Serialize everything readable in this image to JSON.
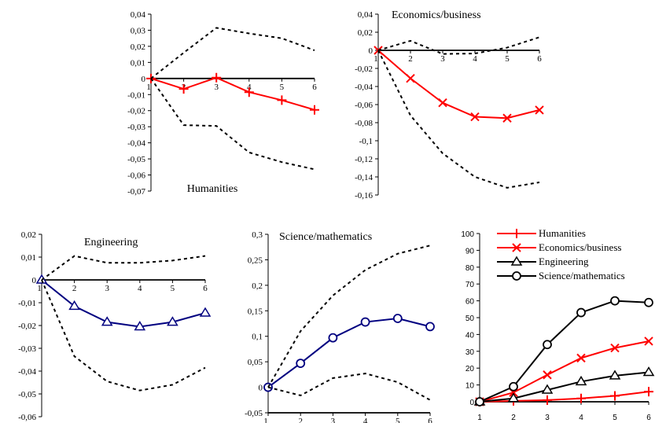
{
  "chart_data": [
    {
      "type": "line",
      "title": "Humanities",
      "x": [
        1,
        2,
        3,
        4,
        5,
        6
      ],
      "ylim": [
        -0.07,
        0.04
      ],
      "yticks": [
        0.04,
        0.03,
        0.02,
        0.01,
        0,
        -0.01,
        -0.02,
        -0.03,
        -0.04,
        -0.05,
        -0.06,
        -0.07
      ],
      "ytick_labels": [
        "0,04",
        "0,03",
        "0,02",
        "0,01",
        "0",
        "-0,01",
        "-0,02",
        "-0,03",
        "-0,04",
        "-0,05",
        "-0,06",
        "-0,07"
      ],
      "xtick_labels": [
        "1",
        "2",
        "3",
        "4",
        "5",
        "6"
      ],
      "series": [
        {
          "role": "estimate",
          "color": "#ff0000",
          "marker": "plus",
          "values": [
            0,
            -0.0065,
            0.0005,
            -0.0085,
            -0.0135,
            -0.0195
          ]
        },
        {
          "role": "upper",
          "color": "#000000",
          "style": "dashed",
          "values": [
            0,
            0.016,
            0.0315,
            0.028,
            0.025,
            0.0175
          ]
        },
        {
          "role": "lower",
          "color": "#000000",
          "style": "dashed",
          "values": [
            0,
            -0.029,
            -0.0295,
            -0.046,
            -0.052,
            -0.0565
          ]
        }
      ]
    },
    {
      "type": "line",
      "title": "Economics/business",
      "x": [
        1,
        2,
        3,
        4,
        5,
        6
      ],
      "ylim": [
        -0.16,
        0.04
      ],
      "yticks": [
        0.04,
        0.02,
        0,
        -0.02,
        -0.04,
        -0.06,
        -0.08,
        -0.1,
        -0.12,
        -0.14,
        -0.16
      ],
      "ytick_labels": [
        "0,04",
        "0,02",
        "0",
        "-0,02",
        "-0,04",
        "-0,06",
        "-0,08",
        "-0,1",
        "-0,12",
        "-0,14",
        "-0,16"
      ],
      "xtick_labels": [
        "1",
        "2",
        "3",
        "4",
        "5",
        "6"
      ],
      "series": [
        {
          "role": "estimate",
          "color": "#ff0000",
          "marker": "x",
          "values": [
            0,
            -0.031,
            -0.058,
            -0.0735,
            -0.075,
            -0.066
          ]
        },
        {
          "role": "upper",
          "color": "#000000",
          "style": "dashed",
          "values": [
            0,
            0.0105,
            -0.004,
            -0.0035,
            0.003,
            0.0145
          ]
        },
        {
          "role": "lower",
          "color": "#000000",
          "style": "dashed",
          "values": [
            0,
            -0.072,
            -0.114,
            -0.14,
            -0.152,
            -0.146
          ]
        }
      ]
    },
    {
      "type": "line",
      "title": "Engineering",
      "x": [
        1,
        2,
        3,
        4,
        5,
        6
      ],
      "ylim": [
        -0.06,
        0.02
      ],
      "yticks": [
        0.02,
        0.01,
        0,
        -0.01,
        -0.02,
        -0.03,
        -0.04,
        -0.05,
        -0.06
      ],
      "ytick_labels": [
        "0,02",
        "0,01",
        "0",
        "-0,01",
        "-0,02",
        "-0,03",
        "-0,04",
        "-0,05",
        "-0,06"
      ],
      "xtick_labels": [
        "1",
        "2",
        "3",
        "4",
        "5",
        "6"
      ],
      "series": [
        {
          "role": "estimate",
          "color": "#000080",
          "marker": "triangle",
          "values": [
            0,
            -0.0115,
            -0.0185,
            -0.0205,
            -0.0185,
            -0.0145
          ]
        },
        {
          "role": "upper",
          "color": "#000000",
          "style": "dashed",
          "values": [
            0,
            0.0105,
            0.0075,
            0.0075,
            0.0085,
            0.0105
          ]
        },
        {
          "role": "lower",
          "color": "#000000",
          "style": "dashed",
          "values": [
            0,
            -0.0335,
            -0.0445,
            -0.0485,
            -0.046,
            -0.0385
          ]
        }
      ]
    },
    {
      "type": "line",
      "title": "Science/mathematics",
      "x": [
        1,
        2,
        3,
        4,
        5,
        6
      ],
      "ylim": [
        -0.05,
        0.3
      ],
      "yticks": [
        0.3,
        0.25,
        0.2,
        0.15,
        0.1,
        0.05,
        0,
        -0.05
      ],
      "ytick_labels": [
        "0,3",
        "0,25",
        "0,2",
        "0,15",
        "0,1",
        "0,05",
        "0",
        "-0,05"
      ],
      "xtick_labels": [
        "1",
        "2",
        "3",
        "4",
        "5",
        "6"
      ],
      "series": [
        {
          "role": "estimate",
          "color": "#000080",
          "marker": "circle",
          "values": [
            0,
            0.047,
            0.097,
            0.128,
            0.135,
            0.119
          ]
        },
        {
          "role": "upper",
          "color": "#000000",
          "style": "dashed",
          "values": [
            0,
            0.11,
            0.18,
            0.23,
            0.262,
            0.278
          ]
        },
        {
          "role": "lower",
          "color": "#000000",
          "style": "dashed",
          "values": [
            0,
            -0.016,
            0.018,
            0.027,
            0.01,
            -0.025
          ]
        }
      ]
    },
    {
      "type": "line",
      "title": "",
      "x": [
        1,
        2,
        3,
        4,
        5,
        6
      ],
      "ylim": [
        0,
        100
      ],
      "yticks": [
        100,
        90,
        80,
        70,
        60,
        50,
        40,
        30,
        20,
        10,
        0
      ],
      "ytick_labels": [
        "100",
        "90",
        "80",
        "70",
        "60",
        "50",
        "40",
        "30",
        "20",
        "10",
        "0"
      ],
      "xtick_labels": [
        "1",
        "2",
        "3",
        "4",
        "5",
        "6"
      ],
      "legend": "top",
      "series": [
        {
          "name": "Humanities",
          "color": "#ff0000",
          "marker": "plus",
          "values": [
            0,
            0.5,
            1,
            2,
            3.5,
            6
          ]
        },
        {
          "name": "Economics/business",
          "color": "#ff0000",
          "marker": "x",
          "values": [
            0,
            5.5,
            16,
            26,
            32,
            36
          ]
        },
        {
          "name": "Engineering",
          "color": "#000000",
          "marker": "triangle",
          "values": [
            0,
            2,
            7,
            12,
            15.5,
            17.5
          ]
        },
        {
          "name": "Science/mathematics",
          "color": "#000000",
          "marker": "circle",
          "values": [
            0,
            9,
            34,
            53,
            60,
            59
          ]
        }
      ]
    }
  ]
}
